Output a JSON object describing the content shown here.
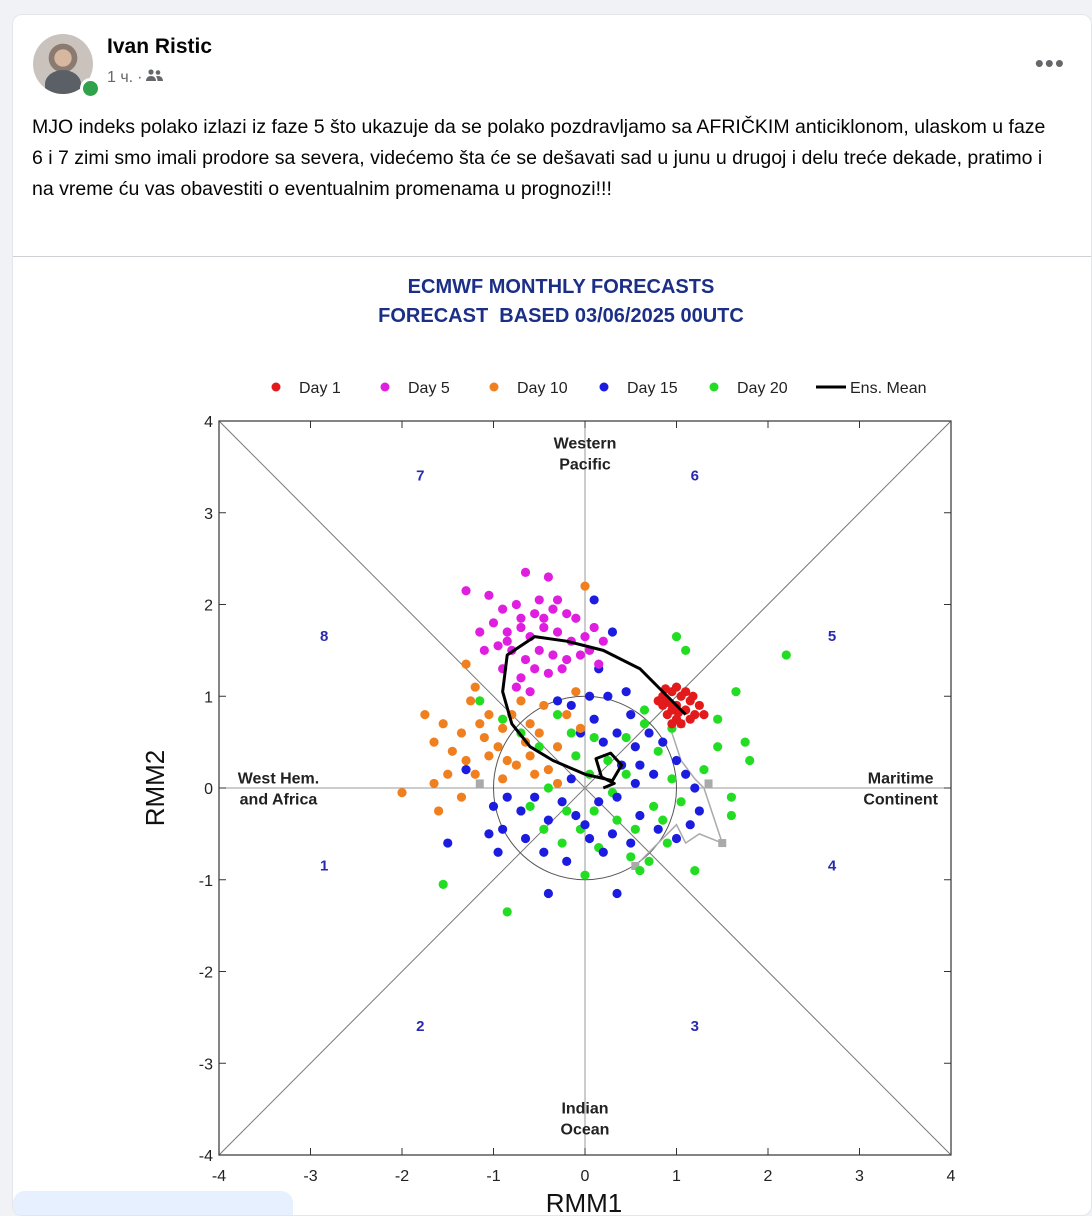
{
  "post": {
    "author": "Ivan Ristic",
    "time": "1 ч.",
    "separator": "·",
    "audience_icon": "friends-icon",
    "more_icon": "more-options-icon",
    "text": "MJO indeks polako izlazi iz faze 5 što ukazuje da se polako pozdravljamo sa AFRIČKIM anticiklonom, ulaskom u faze 6 i 7 zimi smo imali prodore sa severa, videćemo šta će se dešavati sad u junu u drugoj i delu treće dekade, pratimo i na vreme ću vas obavestiti o eventualnim promenama u prognozi!!!"
  },
  "chart_data": {
    "type": "scatter",
    "title": "ECMWF MONTHLY FORECASTS",
    "subtitle": "FORECAST  BASED 03/06/2025 00UTC",
    "xlabel": "RMM1",
    "ylabel": "RMM2",
    "xlim": [
      -4,
      4
    ],
    "ylim": [
      -4,
      4
    ],
    "xticks": [
      "-4",
      "-3",
      "-2",
      "-1",
      "0",
      "1",
      "2",
      "3",
      "4"
    ],
    "yticks": [
      "-4",
      "-3",
      "-2",
      "-1",
      "0",
      "1",
      "2",
      "3",
      "4"
    ],
    "legend_position": "top",
    "phase_labels": [
      {
        "text": "7",
        "x": -1.8,
        "y": 3.35
      },
      {
        "text": "6",
        "x": 1.2,
        "y": 3.35
      },
      {
        "text": "8",
        "x": -2.85,
        "y": 1.6
      },
      {
        "text": "5",
        "x": 2.7,
        "y": 1.6
      },
      {
        "text": "1",
        "x": -2.85,
        "y": -0.9
      },
      {
        "text": "4",
        "x": 2.7,
        "y": -0.9
      },
      {
        "text": "2",
        "x": -1.8,
        "y": -2.65
      },
      {
        "text": "3",
        "x": 1.2,
        "y": -2.65
      }
    ],
    "region_labels": [
      {
        "lines": [
          "Western",
          "Pacific"
        ],
        "x": 0,
        "y": 3.7
      },
      {
        "lines": [
          "Indian",
          "Ocean"
        ],
        "x": 0,
        "y": -3.55
      },
      {
        "lines": [
          "West Hem.",
          "and Africa"
        ],
        "x": -3.35,
        "y": 0.05
      },
      {
        "lines": [
          "Maritime",
          "Continent"
        ],
        "x": 3.45,
        "y": 0.05
      }
    ],
    "series": [
      {
        "name": "Day 1",
        "color": "#e31a1c",
        "points": [
          [
            0.85,
            1.0
          ],
          [
            0.9,
            0.95
          ],
          [
            0.95,
            1.05
          ],
          [
            1.0,
            0.9
          ],
          [
            1.05,
            1.0
          ],
          [
            1.1,
            0.85
          ],
          [
            1.0,
            0.75
          ],
          [
            0.9,
            0.8
          ],
          [
            1.15,
            0.95
          ],
          [
            1.2,
            0.8
          ],
          [
            0.95,
            0.85
          ],
          [
            1.05,
            0.7
          ],
          [
            0.85,
            0.9
          ],
          [
            1.1,
            1.05
          ],
          [
            1.25,
            0.9
          ],
          [
            0.8,
            0.95
          ],
          [
            1.0,
            1.1
          ],
          [
            0.95,
            0.7
          ],
          [
            1.15,
            0.75
          ],
          [
            1.3,
            0.8
          ],
          [
            0.88,
            1.08
          ],
          [
            1.02,
            0.82
          ],
          [
            1.18,
            1.0
          ],
          [
            0.92,
            0.93
          ]
        ]
      },
      {
        "name": "Day 5",
        "color": "#e01ee0",
        "points": [
          [
            -1.3,
            2.15
          ],
          [
            -0.65,
            2.35
          ],
          [
            -0.4,
            2.3
          ],
          [
            -1.05,
            2.1
          ],
          [
            -0.9,
            1.95
          ],
          [
            -0.75,
            2.0
          ],
          [
            -0.55,
            1.9
          ],
          [
            -0.35,
            1.95
          ],
          [
            -0.2,
            1.9
          ],
          [
            -0.1,
            1.85
          ],
          [
            0.1,
            1.75
          ],
          [
            -1.0,
            1.8
          ],
          [
            -0.85,
            1.7
          ],
          [
            -0.7,
            1.75
          ],
          [
            -0.6,
            1.65
          ],
          [
            -0.45,
            1.75
          ],
          [
            -0.3,
            1.7
          ],
          [
            -0.15,
            1.6
          ],
          [
            0.0,
            1.65
          ],
          [
            0.2,
            1.6
          ],
          [
            -1.15,
            1.7
          ],
          [
            -0.95,
            1.55
          ],
          [
            -0.8,
            1.5
          ],
          [
            -0.65,
            1.4
          ],
          [
            -0.5,
            1.5
          ],
          [
            -0.35,
            1.45
          ],
          [
            -0.2,
            1.4
          ],
          [
            -0.05,
            1.45
          ],
          [
            0.15,
            1.35
          ],
          [
            -1.1,
            1.5
          ],
          [
            -0.9,
            1.3
          ],
          [
            -0.7,
            1.2
          ],
          [
            -0.55,
            1.3
          ],
          [
            -0.4,
            1.25
          ],
          [
            -0.25,
            1.3
          ],
          [
            -0.75,
            1.1
          ],
          [
            -0.6,
            1.05
          ],
          [
            -0.45,
            1.85
          ],
          [
            -0.3,
            2.05
          ],
          [
            -0.5,
            2.05
          ],
          [
            -0.7,
            1.85
          ],
          [
            -0.85,
            1.6
          ],
          [
            0.05,
            1.5
          ]
        ]
      },
      {
        "name": "Day 10",
        "color": "#f07f1f",
        "points": [
          [
            -2.0,
            -0.05
          ],
          [
            -1.6,
            -0.25
          ],
          [
            -1.65,
            0.5
          ],
          [
            -1.75,
            0.8
          ],
          [
            -1.65,
            0.05
          ],
          [
            -1.55,
            0.7
          ],
          [
            -1.35,
            0.6
          ],
          [
            -1.3,
            0.3
          ],
          [
            -1.2,
            0.15
          ],
          [
            -1.2,
            1.1
          ],
          [
            -1.3,
            1.35
          ],
          [
            -1.25,
            0.95
          ],
          [
            -1.1,
            0.55
          ],
          [
            -1.05,
            0.35
          ],
          [
            -0.95,
            0.45
          ],
          [
            -0.9,
            0.65
          ],
          [
            -0.8,
            0.8
          ],
          [
            -0.75,
            0.25
          ],
          [
            -0.65,
            0.5
          ],
          [
            -0.6,
            0.35
          ],
          [
            -0.5,
            0.6
          ],
          [
            -0.4,
            0.2
          ],
          [
            -0.3,
            0.45
          ],
          [
            -0.2,
            0.8
          ],
          [
            -0.1,
            1.05
          ],
          [
            -0.05,
            0.65
          ],
          [
            -0.7,
            0.95
          ],
          [
            -1.45,
            0.4
          ],
          [
            -1.5,
            0.15
          ],
          [
            -1.35,
            -0.1
          ],
          [
            -0.9,
            0.1
          ],
          [
            -0.6,
            0.7
          ],
          [
            -0.45,
            0.9
          ],
          [
            -0.3,
            0.05
          ],
          [
            0.0,
            2.2
          ],
          [
            -1.05,
            0.8
          ],
          [
            -0.85,
            0.3
          ],
          [
            -0.55,
            0.15
          ],
          [
            -1.15,
            0.7
          ]
        ]
      },
      {
        "name": "Day 15",
        "color": "#1c1ce0",
        "points": [
          [
            0.1,
            2.05
          ],
          [
            0.3,
            1.7
          ],
          [
            0.15,
            1.3
          ],
          [
            0.25,
            1.0
          ],
          [
            0.45,
            1.05
          ],
          [
            0.5,
            0.8
          ],
          [
            0.05,
            1.0
          ],
          [
            -0.15,
            0.9
          ],
          [
            -0.3,
            0.95
          ],
          [
            -0.05,
            0.6
          ],
          [
            0.1,
            0.75
          ],
          [
            0.2,
            0.5
          ],
          [
            0.35,
            0.6
          ],
          [
            0.55,
            0.45
          ],
          [
            0.7,
            0.6
          ],
          [
            0.85,
            0.5
          ],
          [
            1.0,
            0.3
          ],
          [
            1.1,
            0.15
          ],
          [
            1.2,
            0.0
          ],
          [
            1.25,
            -0.25
          ],
          [
            1.15,
            -0.4
          ],
          [
            1.0,
            -0.55
          ],
          [
            0.8,
            -0.45
          ],
          [
            0.6,
            -0.3
          ],
          [
            0.5,
            -0.6
          ],
          [
            0.3,
            -0.5
          ],
          [
            0.2,
            -0.7
          ],
          [
            0.05,
            -0.55
          ],
          [
            -0.1,
            -0.3
          ],
          [
            -0.25,
            -0.15
          ],
          [
            -0.4,
            -0.35
          ],
          [
            -0.55,
            -0.1
          ],
          [
            -0.7,
            -0.25
          ],
          [
            -0.85,
            -0.1
          ],
          [
            -1.0,
            -0.2
          ],
          [
            -1.05,
            -0.5
          ],
          [
            -0.9,
            -0.45
          ],
          [
            -0.65,
            -0.55
          ],
          [
            -0.45,
            -0.7
          ],
          [
            -0.2,
            -0.8
          ],
          [
            0.0,
            -0.4
          ],
          [
            0.15,
            -0.15
          ],
          [
            0.35,
            -0.1
          ],
          [
            0.55,
            0.05
          ],
          [
            0.75,
            0.15
          ],
          [
            -0.4,
            -1.15
          ],
          [
            0.35,
            -1.15
          ],
          [
            -1.5,
            -0.6
          ],
          [
            -0.95,
            -0.7
          ],
          [
            -1.3,
            0.2
          ],
          [
            0.4,
            0.25
          ],
          [
            0.6,
            0.25
          ],
          [
            -0.15,
            0.1
          ]
        ]
      },
      {
        "name": "Day 20",
        "color": "#22dd22",
        "points": [
          [
            2.2,
            1.45
          ],
          [
            1.65,
            1.05
          ],
          [
            1.75,
            0.5
          ],
          [
            1.8,
            0.3
          ],
          [
            1.0,
            1.65
          ],
          [
            1.1,
            1.5
          ],
          [
            1.45,
            0.75
          ],
          [
            1.6,
            -0.1
          ],
          [
            1.6,
            -0.3
          ],
          [
            1.2,
            -0.9
          ],
          [
            0.6,
            -0.9
          ],
          [
            -0.85,
            -1.35
          ],
          [
            -1.55,
            -1.05
          ],
          [
            0.0,
            -0.95
          ],
          [
            -1.15,
            0.95
          ],
          [
            -0.9,
            0.75
          ],
          [
            -0.7,
            0.6
          ],
          [
            -0.5,
            0.45
          ],
          [
            -0.3,
            0.8
          ],
          [
            -0.1,
            0.35
          ],
          [
            0.05,
            0.15
          ],
          [
            0.25,
            0.3
          ],
          [
            0.45,
            0.55
          ],
          [
            0.65,
            0.7
          ],
          [
            0.8,
            0.4
          ],
          [
            0.95,
            0.65
          ],
          [
            0.45,
            0.15
          ],
          [
            0.3,
            -0.05
          ],
          [
            0.1,
            -0.25
          ],
          [
            -0.05,
            -0.45
          ],
          [
            -0.25,
            -0.6
          ],
          [
            -0.45,
            -0.45
          ],
          [
            -0.6,
            -0.2
          ],
          [
            -0.4,
            0.0
          ],
          [
            0.15,
            -0.65
          ],
          [
            0.35,
            -0.35
          ],
          [
            0.55,
            -0.45
          ],
          [
            0.75,
            -0.2
          ],
          [
            0.9,
            -0.6
          ],
          [
            0.7,
            -0.8
          ],
          [
            0.5,
            -0.75
          ],
          [
            -0.2,
            -0.25
          ],
          [
            0.95,
            0.1
          ],
          [
            1.05,
            -0.15
          ],
          [
            0.65,
            0.85
          ],
          [
            -0.15,
            0.6
          ],
          [
            0.1,
            0.55
          ],
          [
            1.3,
            0.2
          ],
          [
            1.45,
            0.45
          ],
          [
            0.85,
            -0.35
          ]
        ]
      }
    ],
    "ens_mean_name": "Ens. Mean",
    "ens_mean": [
      [
        1.1,
        0.8
      ],
      [
        0.9,
        1.0
      ],
      [
        0.6,
        1.3
      ],
      [
        0.2,
        1.5
      ],
      [
        -0.2,
        1.6
      ],
      [
        -0.55,
        1.65
      ],
      [
        -0.85,
        1.45
      ],
      [
        -0.9,
        1.05
      ],
      [
        -0.8,
        0.7
      ],
      [
        -0.6,
        0.45
      ],
      [
        -0.35,
        0.3
      ],
      [
        0.0,
        0.15
      ],
      [
        0.3,
        0.08
      ],
      [
        0.4,
        0.25
      ],
      [
        0.28,
        0.38
      ],
      [
        0.12,
        0.32
      ],
      [
        0.18,
        0.12
      ],
      [
        0.32,
        0.05
      ],
      [
        0.2,
        0.0
      ]
    ],
    "climatology_circle_radius": 1.0,
    "grey_path": [
      [
        0.6,
        -0.8
      ],
      [
        0.8,
        -0.6
      ],
      [
        1.0,
        -0.4
      ],
      [
        1.1,
        -0.6
      ],
      [
        1.25,
        -0.5
      ],
      [
        1.5,
        -0.6
      ],
      [
        1.4,
        -0.3
      ],
      [
        1.3,
        0.0
      ],
      [
        1.2,
        0.1
      ],
      [
        1.05,
        0.3
      ],
      [
        0.95,
        0.6
      ]
    ],
    "grey_markers": [
      [
        -1.15,
        0.05
      ],
      [
        0.55,
        -0.85
      ],
      [
        1.5,
        -0.6
      ],
      [
        1.35,
        0.05
      ],
      [
        1.05,
        0.7
      ]
    ]
  }
}
